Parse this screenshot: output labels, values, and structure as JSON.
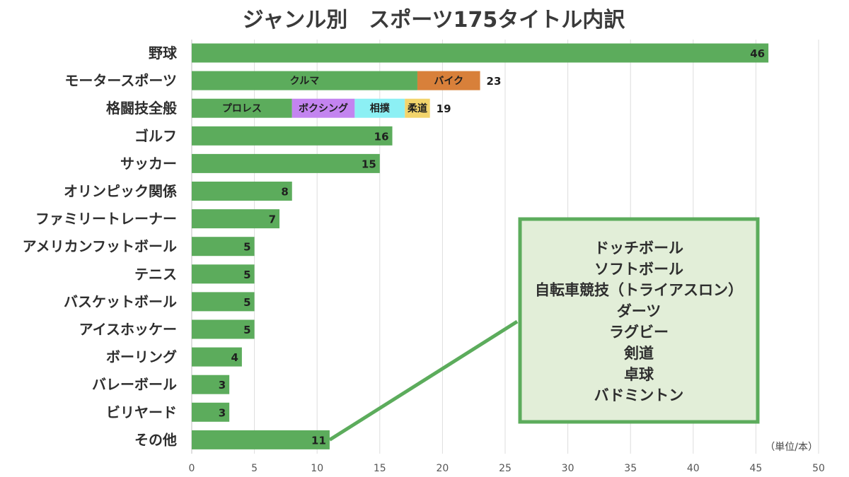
{
  "chart_data": {
    "type": "bar",
    "orientation": "horizontal",
    "title": "ジャンル別　スポーツ175タイトル内訳",
    "unit_label": "（単位/本）",
    "xlim": [
      0,
      50
    ],
    "x_ticks": [
      0,
      5,
      10,
      15,
      20,
      25,
      30,
      35,
      40,
      45,
      50
    ],
    "grid": "vertical",
    "bar_color": "#5cac5c",
    "categories": [
      {
        "label": "野球",
        "total": 46,
        "segments": []
      },
      {
        "label": "モータースポーツ",
        "total": 23,
        "segments": [
          {
            "name": "クルマ",
            "value": 18,
            "color": "#5cac5c"
          },
          {
            "name": "バイク",
            "value": 5,
            "color": "#d8803a"
          }
        ]
      },
      {
        "label": "格闘技全般",
        "total": 19,
        "segments": [
          {
            "name": "プロレス",
            "value": 8,
            "color": "#5cac5c"
          },
          {
            "name": "ボクシング",
            "value": 5,
            "color": "#c384f0"
          },
          {
            "name": "相撲",
            "value": 4,
            "color": "#8cf0f4"
          },
          {
            "name": "柔道",
            "value": 2,
            "color": "#f2d46c"
          }
        ]
      },
      {
        "label": "ゴルフ",
        "total": 16,
        "segments": []
      },
      {
        "label": "サッカー",
        "total": 15,
        "segments": []
      },
      {
        "label": "オリンピック関係",
        "total": 8,
        "segments": []
      },
      {
        "label": "ファミリートレーナー",
        "total": 7,
        "segments": []
      },
      {
        "label": "アメリカンフットボール",
        "total": 5,
        "segments": []
      },
      {
        "label": "テニス",
        "total": 5,
        "segments": []
      },
      {
        "label": "バスケットボール",
        "total": 5,
        "segments": []
      },
      {
        "label": "アイスホッケー",
        "total": 5,
        "segments": []
      },
      {
        "label": "ボーリング",
        "total": 4,
        "segments": []
      },
      {
        "label": "バレーボール",
        "total": 3,
        "segments": []
      },
      {
        "label": "ビリヤード",
        "total": 3,
        "segments": []
      },
      {
        "label": "その他",
        "total": 11,
        "segments": []
      }
    ],
    "callout": {
      "target": "その他",
      "border_color": "#5cac5c",
      "background": "#e2eed8",
      "items": [
        "ドッチボール",
        "ソフトボール",
        "自転車競技（トライアスロン）",
        "ダーツ",
        "ラグビー",
        "剣道",
        "卓球",
        "バドミントン"
      ]
    }
  }
}
